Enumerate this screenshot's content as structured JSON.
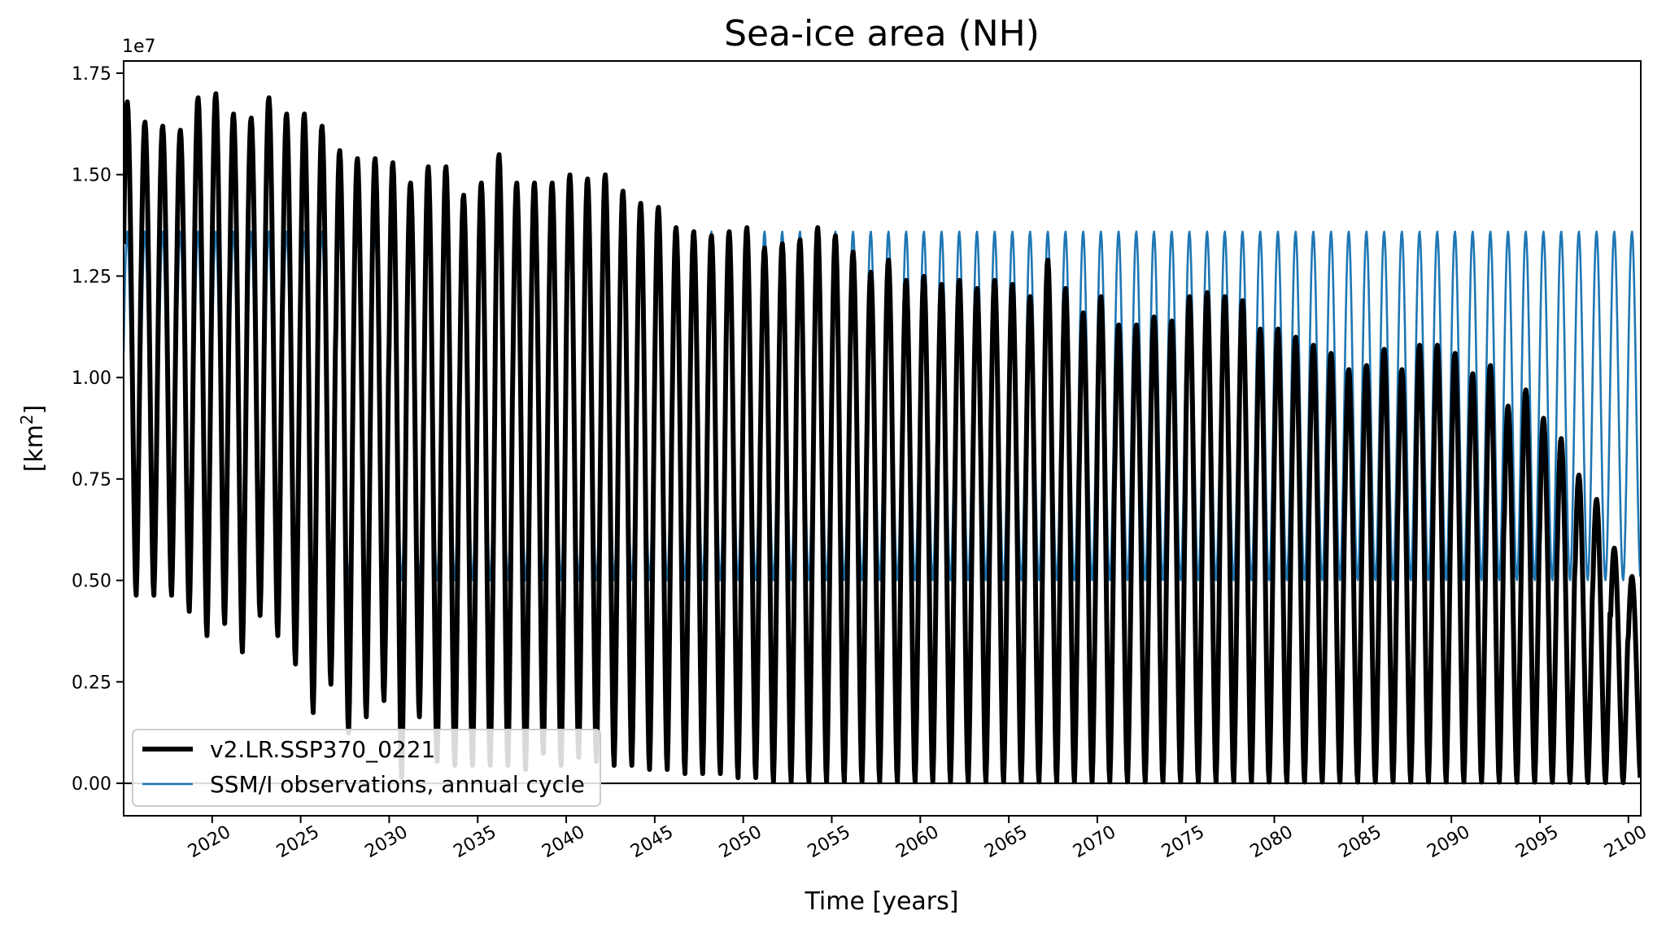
{
  "chart_data": {
    "type": "line",
    "title": "Sea-ice area (NH)",
    "xlabel": "Time [years]",
    "ylabel_main": "[km",
    "ylabel_sup": "2",
    "ylabel_close": "]",
    "y_offset_text": "1e7",
    "xlim": [
      2015.0,
      2100.7
    ],
    "ylim": [
      -0.08,
      1.78
    ],
    "x_ticks": [
      2020,
      2025,
      2030,
      2035,
      2040,
      2045,
      2050,
      2055,
      2060,
      2065,
      2070,
      2075,
      2080,
      2085,
      2090,
      2095,
      2100
    ],
    "x_tick_labels": [
      "2020",
      "2025",
      "2030",
      "2035",
      "2040",
      "2045",
      "2050",
      "2055",
      "2060",
      "2065",
      "2070",
      "2075",
      "2080",
      "2085",
      "2090",
      "2095",
      "2100"
    ],
    "y_ticks": [
      0.0,
      0.25,
      0.5,
      0.75,
      1.0,
      1.25,
      1.5,
      1.75
    ],
    "y_tick_labels": [
      "0.00",
      "0.25",
      "0.50",
      "0.75",
      "1.00",
      "1.25",
      "1.50",
      "1.75"
    ],
    "zero_line": 0.0,
    "legend_position": "lower-left",
    "series": [
      {
        "name": "v2.LR.SSP370_0221",
        "color": "#000000",
        "style": "thick",
        "annual_max": [
          1.68,
          1.63,
          1.62,
          1.61,
          1.69,
          1.7,
          1.65,
          1.64,
          1.69,
          1.65,
          1.65,
          1.62,
          1.56,
          1.54,
          1.54,
          1.53,
          1.48,
          1.52,
          1.52,
          1.45,
          1.48,
          1.55,
          1.48,
          1.48,
          1.48,
          1.5,
          1.49,
          1.5,
          1.46,
          1.43,
          1.42,
          1.37,
          1.36,
          1.35,
          1.36,
          1.37,
          1.32,
          1.33,
          1.34,
          1.37,
          1.35,
          1.31,
          1.26,
          1.29,
          1.24,
          1.25,
          1.23,
          1.24,
          1.22,
          1.24,
          1.23,
          1.2,
          1.29,
          1.22,
          1.16,
          1.2,
          1.13,
          1.13,
          1.15,
          1.14,
          1.2,
          1.21,
          1.2,
          1.19,
          1.12,
          1.12,
          1.1,
          1.08,
          1.06,
          1.02,
          1.03,
          1.07,
          1.02,
          1.08,
          1.08,
          1.06,
          1.01,
          1.03,
          0.93,
          0.97,
          0.9,
          0.85,
          0.76,
          0.7,
          0.58,
          0.51,
          0.5
        ],
        "annual_min": [
          0.46,
          0.46,
          0.46,
          0.42,
          0.36,
          0.39,
          0.32,
          0.41,
          0.36,
          0.29,
          0.17,
          0.24,
          0.12,
          0.16,
          0.2,
          0.01,
          0.16,
          0.05,
          0.04,
          0.04,
          0.04,
          0.04,
          0.03,
          0.07,
          0.04,
          0.06,
          0.05,
          0.04,
          0.04,
          0.03,
          0.03,
          0.02,
          0.02,
          0.02,
          0.01,
          0.01,
          0.0,
          0.0,
          0.0,
          0.0,
          0.0,
          0.0,
          0.0,
          0.0,
          0.0,
          0.0,
          0.0,
          0.0,
          0.0,
          0.0,
          0.0,
          0.0,
          0.0,
          0.0,
          0.0,
          0.0,
          0.0,
          0.0,
          0.0,
          0.0,
          0.0,
          0.0,
          0.0,
          0.0,
          0.0,
          0.0,
          0.0,
          0.0,
          0.0,
          0.0,
          0.0,
          0.0,
          0.0,
          0.0,
          0.0,
          0.0,
          0.0,
          0.0,
          0.0,
          0.0,
          0.0,
          0.0,
          0.0,
          0.0,
          0.0,
          0.0,
          0.0
        ]
      },
      {
        "name": "SSM/I observations, annual cycle",
        "color": "#1f77b4",
        "style": "thin",
        "annual_max": 1.36,
        "annual_min": 0.5
      }
    ]
  }
}
